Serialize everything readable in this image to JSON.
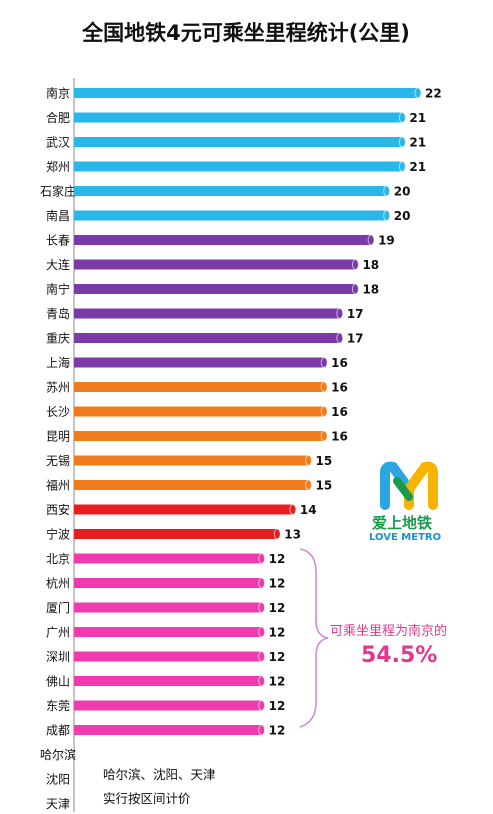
{
  "chart_data": {
    "type": "bar",
    "orientation": "horizontal",
    "title": "全国地铁4元可乘坐里程统计(公里)",
    "categories": [
      "南京",
      "合肥",
      "武汉",
      "郑州",
      "石家庄",
      "南昌",
      "长春",
      "大连",
      "南宁",
      "青岛",
      "重庆",
      "上海",
      "苏州",
      "长沙",
      "昆明",
      "无锡",
      "福州",
      "西安",
      "宁波",
      "北京",
      "杭州",
      "厦门",
      "广州",
      "深圳",
      "佛山",
      "东莞",
      "成都",
      "哈尔滨",
      "沈阳",
      "天津"
    ],
    "values": [
      22,
      21,
      21,
      21,
      20,
      20,
      19,
      18,
      18,
      17,
      17,
      16,
      16,
      16,
      16,
      15,
      15,
      14,
      13,
      12,
      12,
      12,
      12,
      12,
      12,
      12,
      12,
      null,
      null,
      null
    ],
    "bar_colors": [
      "#29b6e8",
      "#29b6e8",
      "#29b6e8",
      "#29b6e8",
      "#29b6e8",
      "#29b6e8",
      "#7b3aa8",
      "#7b3aa8",
      "#7b3aa8",
      "#7b3aa8",
      "#7b3aa8",
      "#7b3aa8",
      "#f07c1e",
      "#f07c1e",
      "#f07c1e",
      "#f07c1e",
      "#f07c1e",
      "#e81d1d",
      "#e81d1d",
      "#f03ab0",
      "#f03ab0",
      "#f03ab0",
      "#f03ab0",
      "#f03ab0",
      "#f03ab0",
      "#f03ab0",
      "#f03ab0",
      null,
      null,
      null
    ],
    "xlim": [
      0,
      22
    ],
    "grid": false,
    "legend": "none"
  },
  "notes": {
    "line1": "哈尔滨、沈阳、天津",
    "line2": "实行按区间计价"
  },
  "annotation": {
    "text": "可乘坐里程为南京的",
    "percent": "54.5%"
  },
  "logo": {
    "text_cn": "爱上地铁",
    "text_en": "LOVE METRO"
  }
}
